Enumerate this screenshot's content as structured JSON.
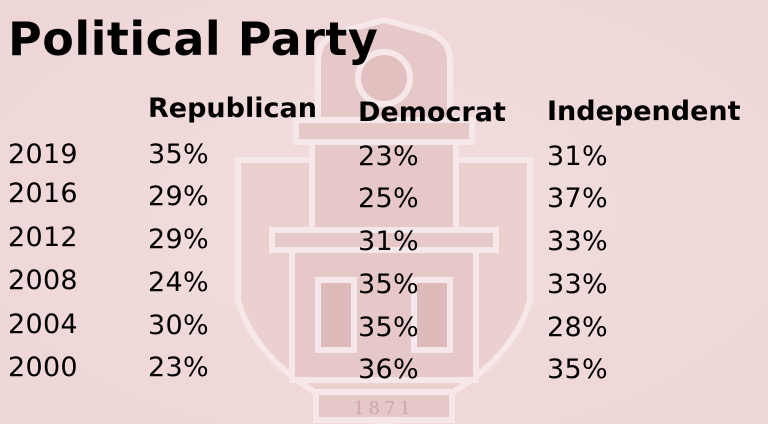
{
  "title": "Political Party",
  "table": {
    "headers": [
      "Republican",
      "Democrat",
      "Independent"
    ],
    "rows": [
      {
        "year": "2019",
        "republican": "35%",
        "democrat": "23%",
        "independent": "31%"
      },
      {
        "year": "2016",
        "republican": "29%",
        "democrat": "25%",
        "independent": "37%"
      },
      {
        "year": "2012",
        "republican": "29%",
        "democrat": "31%",
        "independent": "33%"
      },
      {
        "year": "2008",
        "republican": "24%",
        "democrat": "35%",
        "independent": "33%"
      },
      {
        "year": "2004",
        "republican": "30%",
        "democrat": "35%",
        "independent": "28%"
      },
      {
        "year": "2000",
        "republican": "23%",
        "democrat": "36%",
        "independent": "35%"
      }
    ]
  },
  "watermark": {
    "icon": "university-tower-crest-icon",
    "year_text": "1871",
    "colors": {
      "background": "#f2dcdc",
      "crest_fill": "#e6c4c4",
      "crest_stroke": "#f7eaea"
    }
  }
}
